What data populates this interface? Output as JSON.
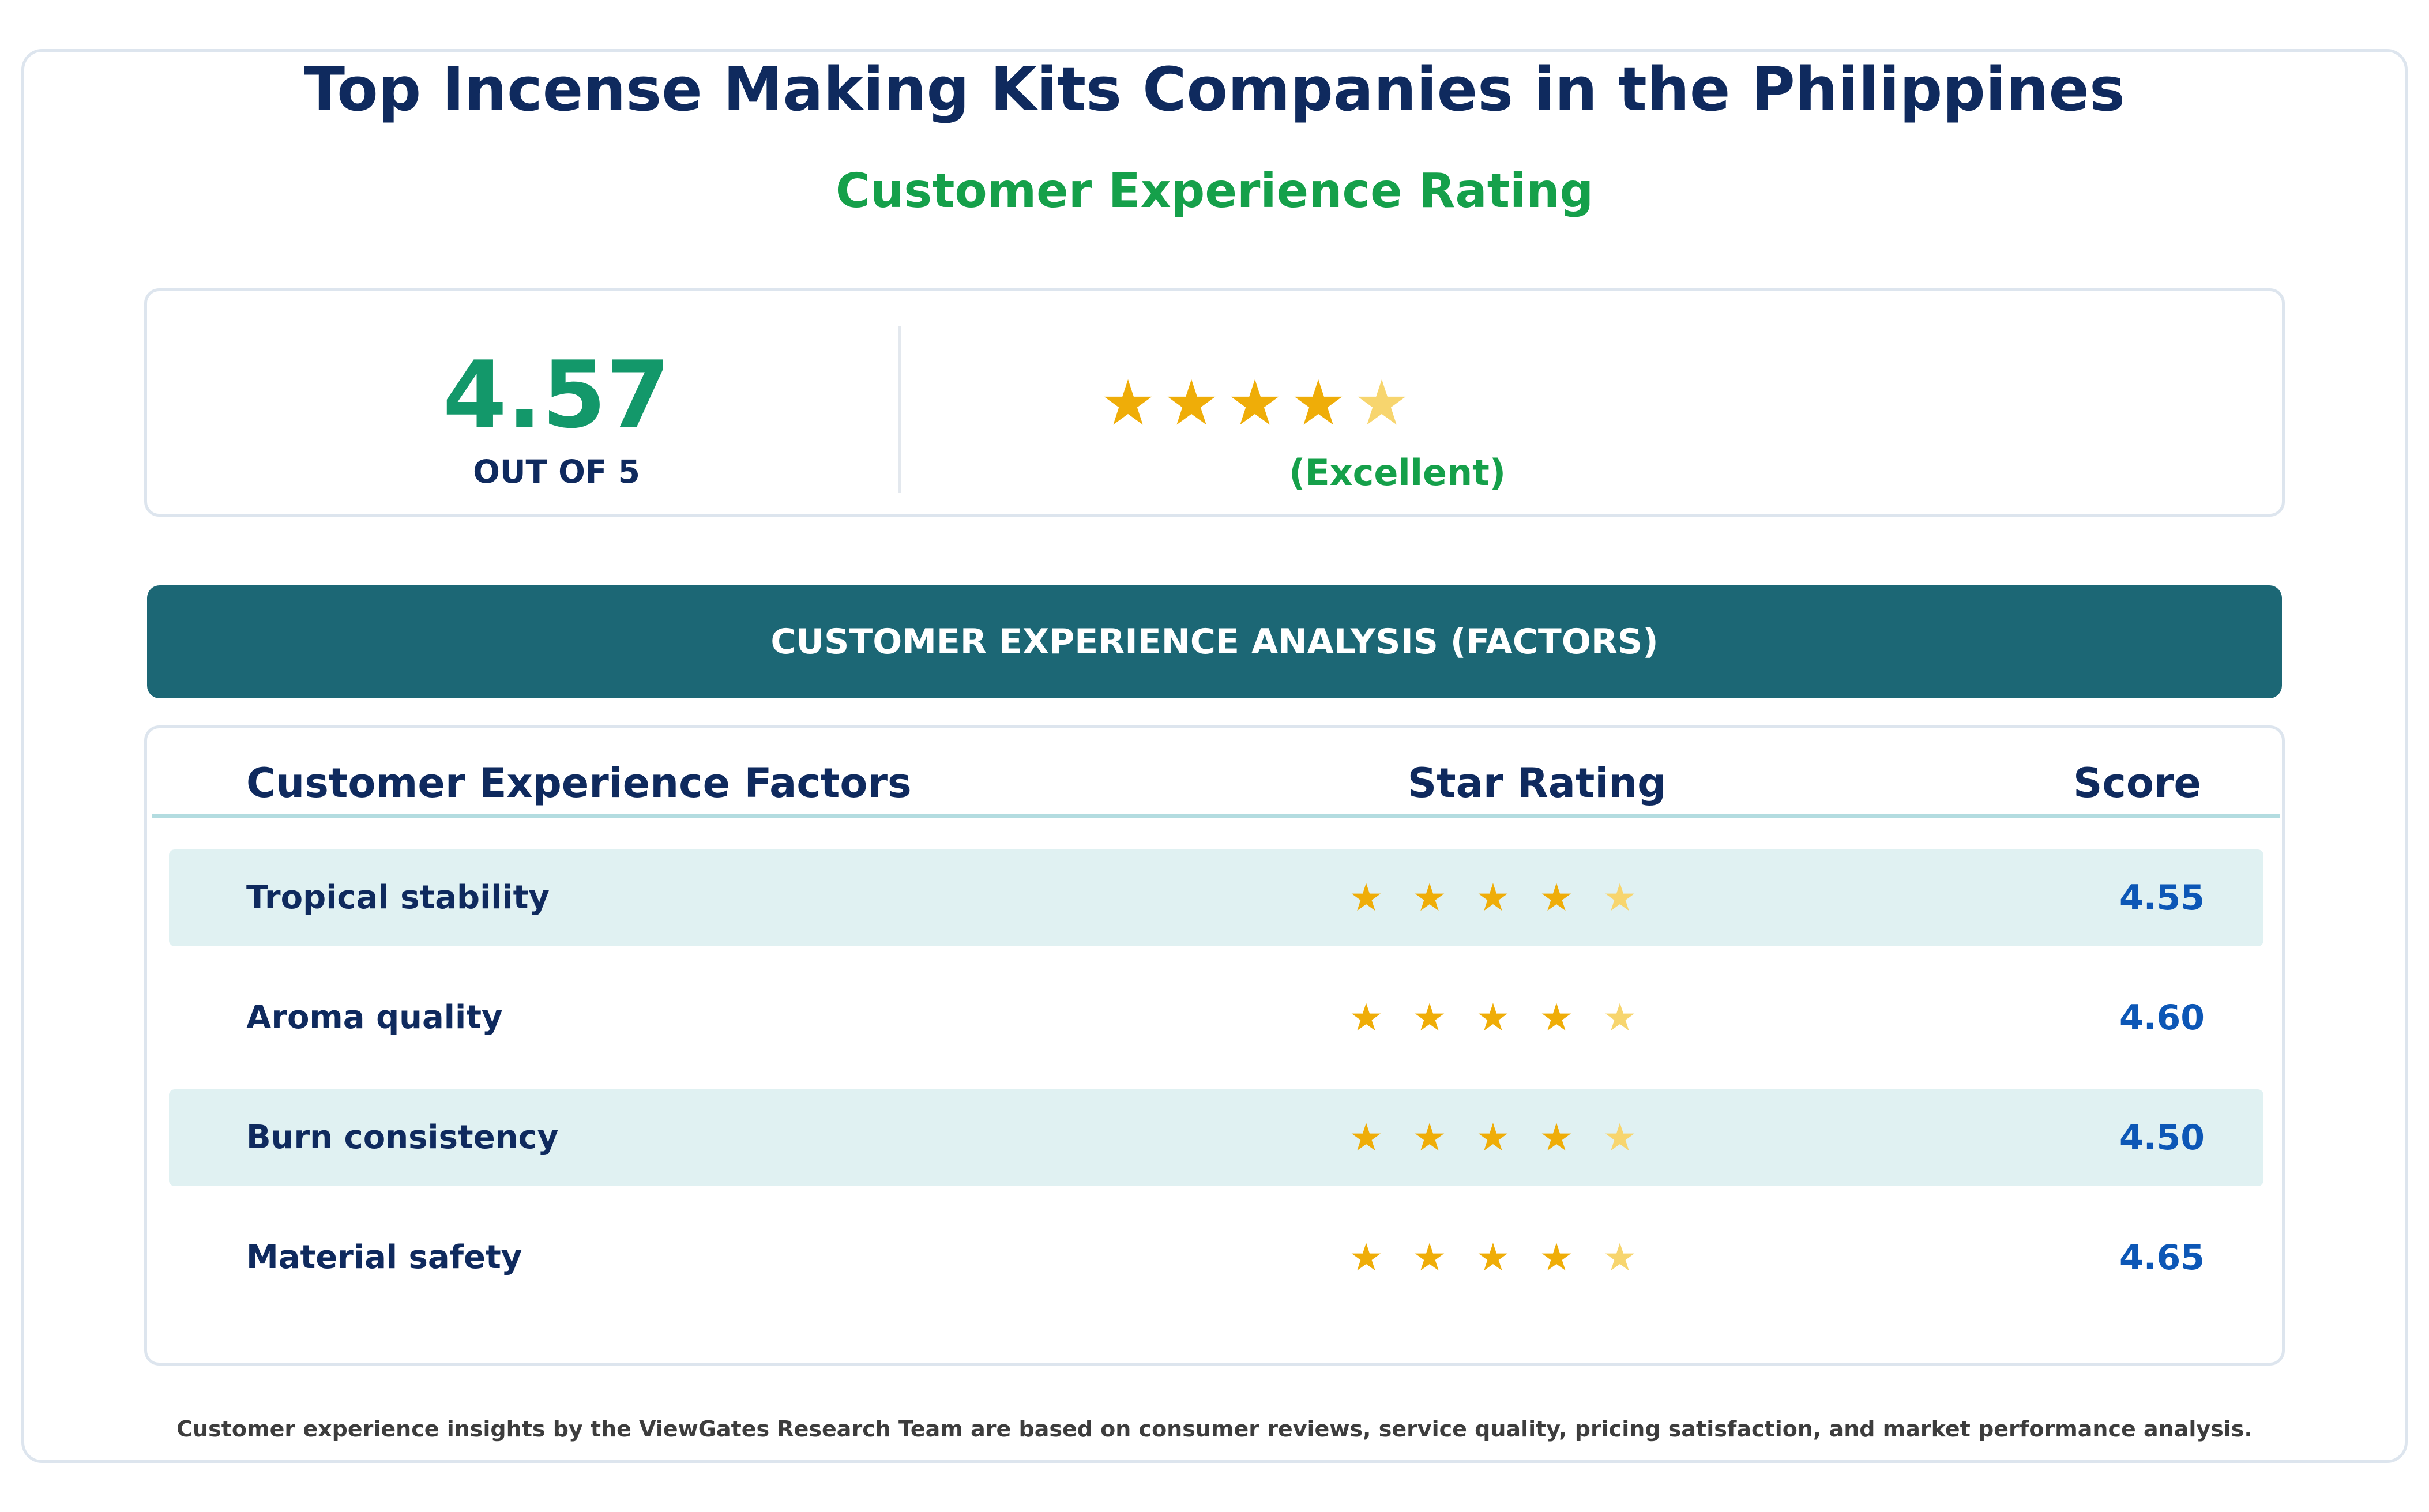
{
  "title": "Top Incense Making Kits Companies in the Philippines",
  "subtitle": "Customer Experience Rating",
  "summary": {
    "score": "4.57",
    "out_of": "OUT OF 5",
    "stars_value": 4.57,
    "stars_max": 5,
    "label": "(Excellent)"
  },
  "banner": "CUSTOMER EXPERIENCE ANALYSIS (FACTORS)",
  "table": {
    "headers": {
      "factor": "Customer Experience Factors",
      "stars": "Star Rating",
      "score": "Score"
    },
    "rows": [
      {
        "label": "Tropical stability",
        "score": "4.55",
        "stars_value": 4.55
      },
      {
        "label": "Aroma quality",
        "score": "4.60",
        "stars_value": 4.6
      },
      {
        "label": "Burn consistency",
        "score": "4.50",
        "stars_value": 4.5
      },
      {
        "label": "Material safety",
        "score": "4.65",
        "stars_value": 4.65
      }
    ]
  },
  "colors": {
    "star_full": "#efad08",
    "star_partial": "#f7d56e",
    "accent_green": "#15a04a",
    "navy": "#0f2a5e",
    "banner_teal": "#1c6775",
    "score_blue": "#0d57b6"
  },
  "icons": {
    "star": "star-icon"
  },
  "footnote": "Customer experience insights by the ViewGates Research Team are based on consumer reviews, service quality, pricing satisfaction, and market performance analysis."
}
